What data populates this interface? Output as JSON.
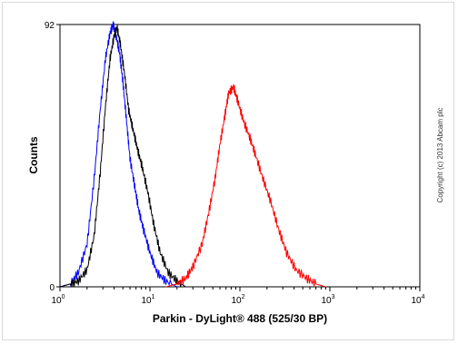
{
  "chart_data": {
    "type": "line",
    "title": "",
    "xlabel": "Parkin - DyLight® 488 (525/30 BP)",
    "ylabel": "Counts",
    "x_scale": "log",
    "xlim": [
      1,
      10000
    ],
    "ylim": [
      0,
      92
    ],
    "x_ticks": [
      {
        "base": "10",
        "exp": "0"
      },
      {
        "base": "10",
        "exp": "1"
      },
      {
        "base": "10",
        "exp": "2"
      },
      {
        "base": "10",
        "exp": "3"
      },
      {
        "base": "10",
        "exp": "4"
      }
    ],
    "y_ticks": [
      "0",
      "92"
    ],
    "grid": false,
    "legend": "none",
    "series": [
      {
        "color": "#0000ff",
        "x": [
          1.0,
          1.3,
          1.6,
          2.0,
          2.4,
          2.8,
          3.2,
          3.6,
          3.9,
          4.2,
          4.6,
          5.0,
          5.5,
          6.0,
          6.8,
          7.5,
          8.5,
          10,
          12,
          15,
          20
        ],
        "y": [
          0,
          1,
          5,
          15,
          38,
          62,
          80,
          89,
          92,
          88,
          82,
          72,
          58,
          45,
          35,
          27,
          20,
          12,
          5,
          2,
          0
        ]
      },
      {
        "color": "#000000",
        "x": [
          1.0,
          1.3,
          1.6,
          2.0,
          2.4,
          2.8,
          3.2,
          3.6,
          4.0,
          4.3,
          4.7,
          5.2,
          5.8,
          6.5,
          7.3,
          8.2,
          9.5,
          11,
          13,
          16,
          20,
          25
        ],
        "y": [
          0,
          1,
          2,
          6,
          18,
          40,
          63,
          80,
          88,
          91,
          85,
          75,
          62,
          55,
          48,
          42,
          33,
          22,
          12,
          5,
          2,
          0
        ]
      },
      {
        "color": "#ff0000",
        "x": [
          15,
          20,
          25,
          30,
          38,
          45,
          53,
          60,
          68,
          75,
          85,
          95,
          110,
          130,
          150,
          180,
          220,
          270,
          330,
          420,
          550,
          700,
          900
        ],
        "y": [
          0,
          1,
          3,
          7,
          15,
          26,
          38,
          50,
          60,
          68,
          70,
          65,
          58,
          52,
          46,
          38,
          30,
          20,
          12,
          6,
          3,
          1,
          0
        ]
      }
    ]
  },
  "copyright": "Copyright (c) 2013 Abcam plc"
}
